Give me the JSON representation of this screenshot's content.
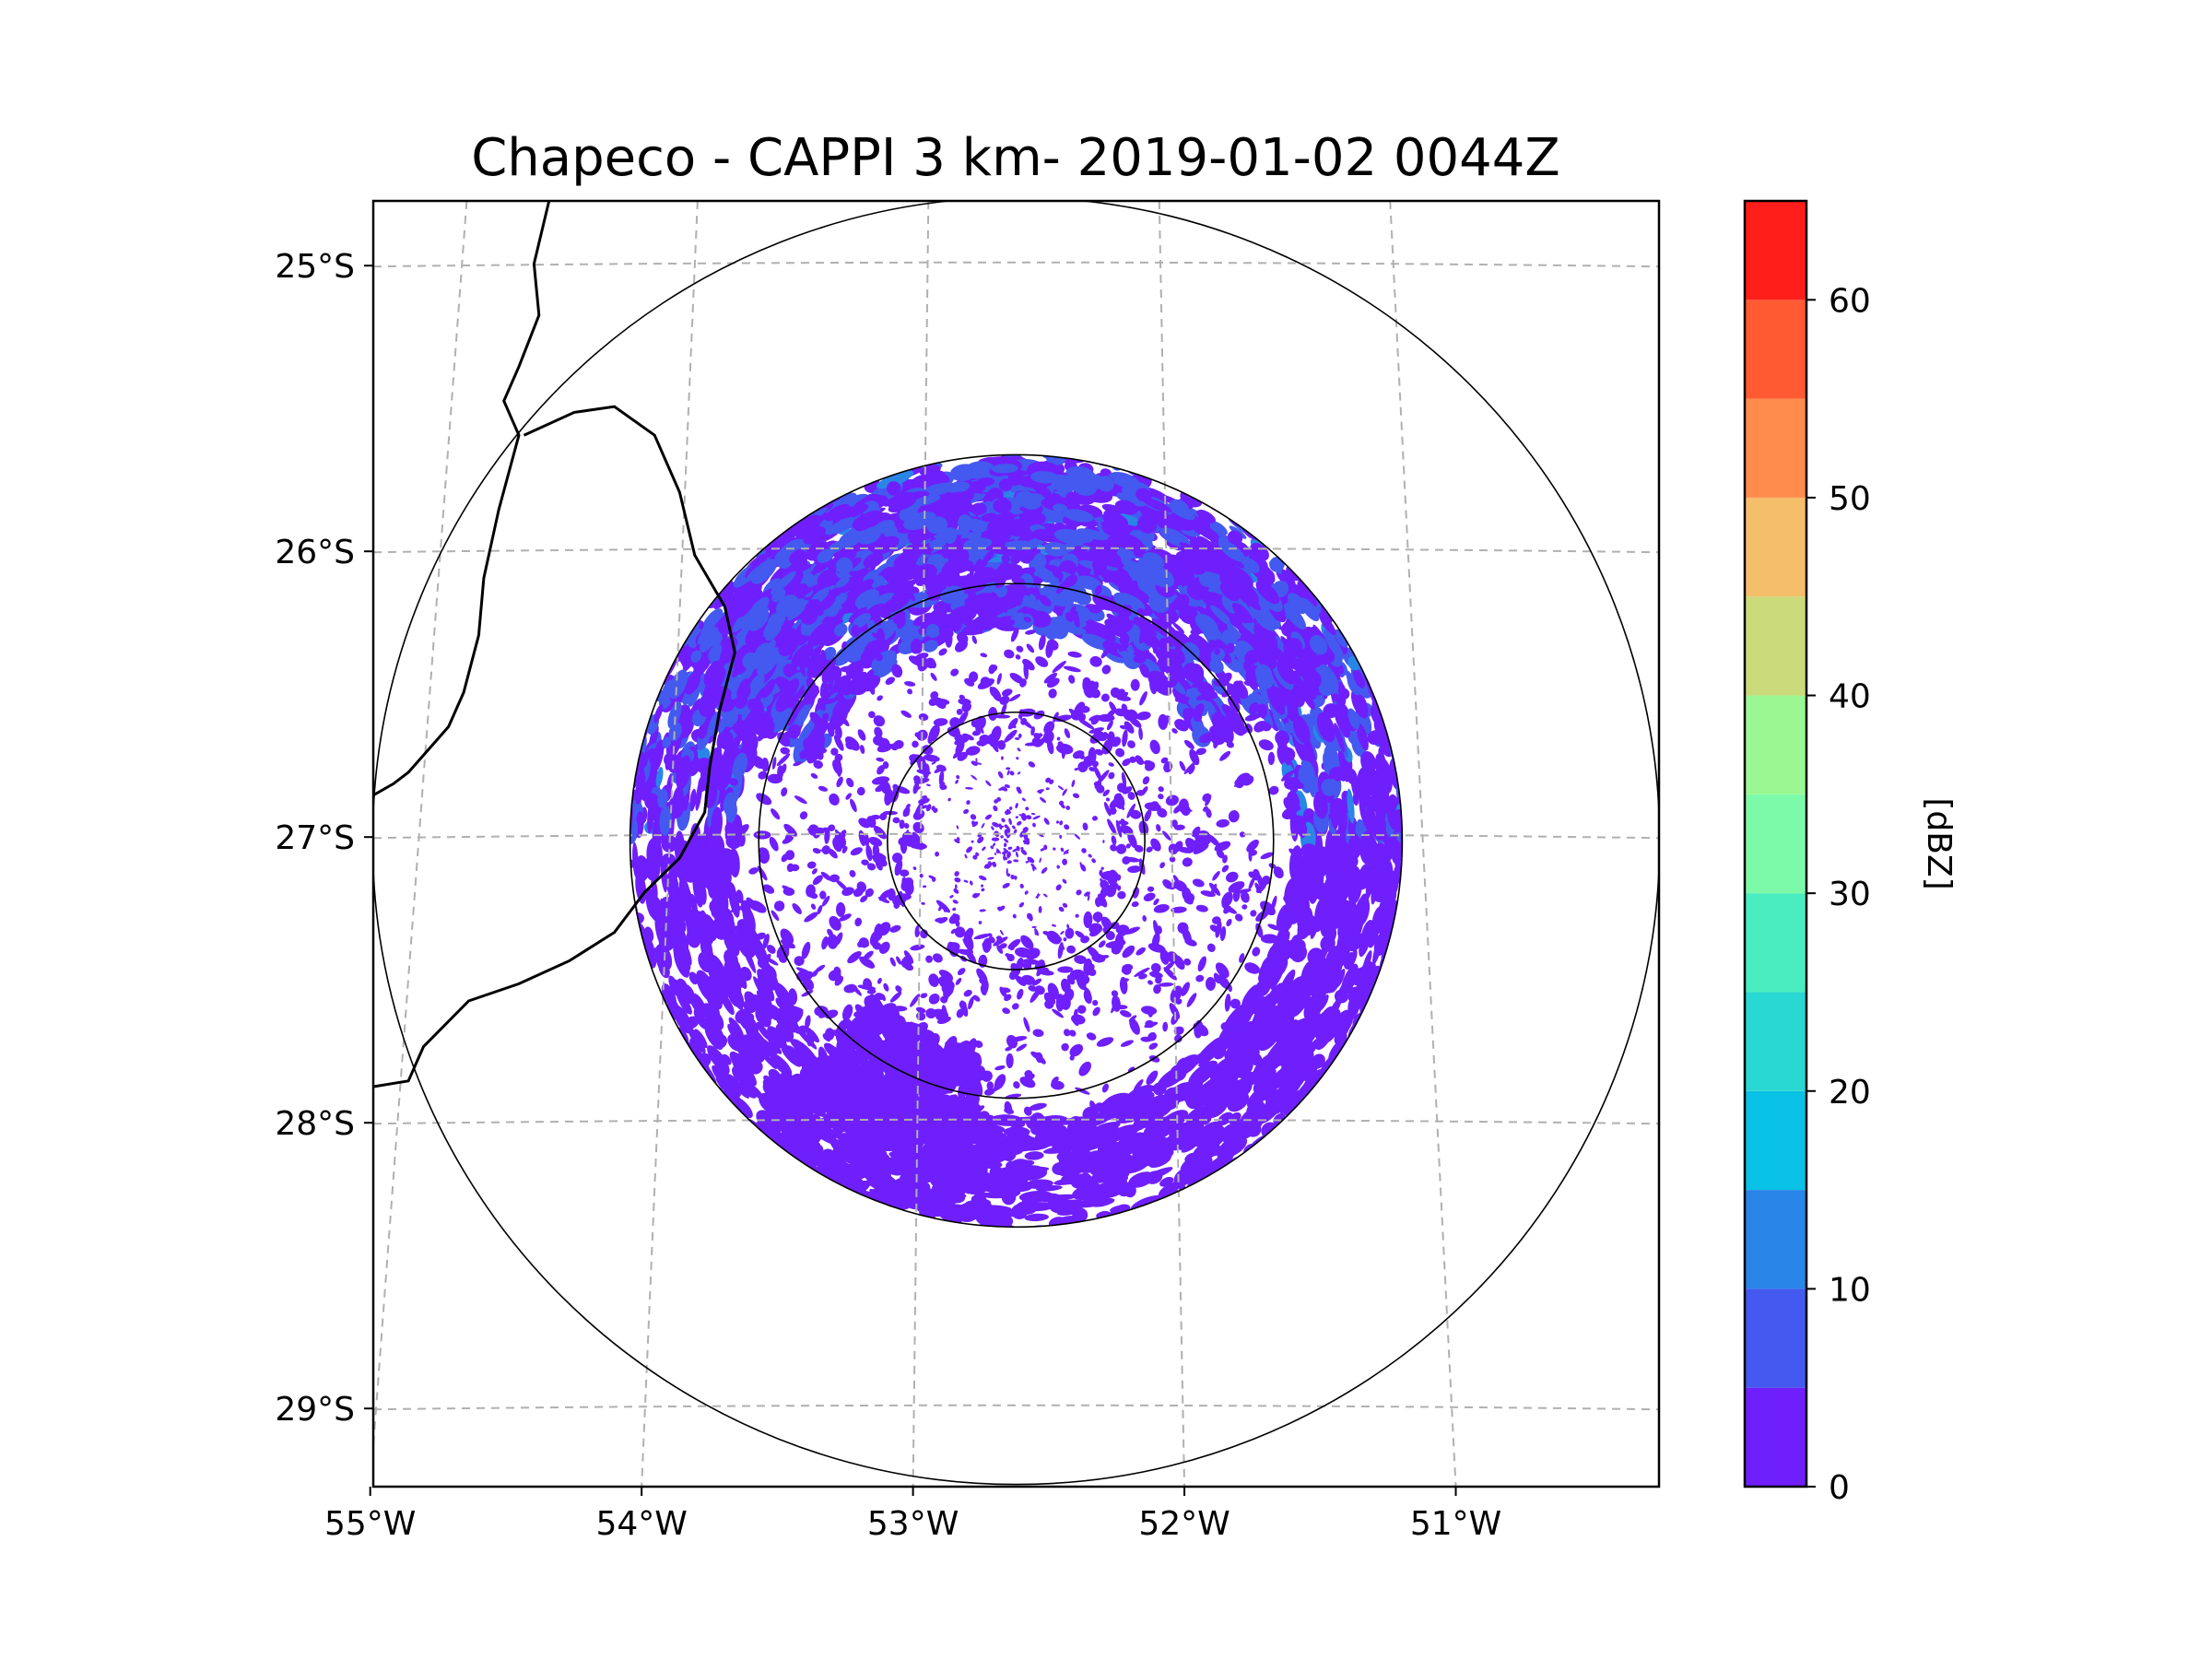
{
  "title": "Chapeco - CAPPI 3 km- 2019-01-02 0044Z",
  "map": {
    "lon_range": [
      -55.18,
      -50.06
    ],
    "lat_range": [
      -29.28,
      -24.78
    ],
    "radar_center": {
      "lon": -52.62,
      "lat": -27.02
    },
    "range_rings_km": [
      50,
      100,
      150,
      250
    ],
    "graticule_style": "dashed gray",
    "lat_ticks": [
      {
        "value": -25,
        "label": "25°S"
      },
      {
        "value": -26,
        "label": "26°S"
      },
      {
        "value": -27,
        "label": "27°S"
      },
      {
        "value": -28,
        "label": "28°S"
      },
      {
        "value": -29,
        "label": "29°S"
      }
    ],
    "lon_ticks": [
      {
        "value": -55,
        "label": "55°W"
      },
      {
        "value": -54,
        "label": "54°W"
      },
      {
        "value": -53,
        "label": "53°W"
      },
      {
        "value": -52,
        "label": "52°W"
      },
      {
        "value": -51,
        "label": "51°W"
      }
    ],
    "borders": "national and state boundaries (black) on west side"
  },
  "chart_data": {
    "type": "heatmap",
    "title": "Chapeco - CAPPI 3 km- 2019-01-02 0044Z",
    "field": "reflectivity",
    "units": "[dBZ]",
    "dominant_values_dbz": "0-10, scattered echoes, strongest ~10-15 dBZ in north and east",
    "colorbar": {
      "label": "[dBZ]",
      "range": [
        0,
        65
      ],
      "ticks": [
        0,
        10,
        20,
        30,
        40,
        50,
        60
      ],
      "bins": [
        {
          "from": 0,
          "to": 5,
          "color": "#6f1ffb"
        },
        {
          "from": 5,
          "to": 10,
          "color": "#4459ef"
        },
        {
          "from": 10,
          "to": 15,
          "color": "#2a85e8"
        },
        {
          "from": 15,
          "to": 20,
          "color": "#0ac1e6"
        },
        {
          "from": 20,
          "to": 25,
          "color": "#29d8d2"
        },
        {
          "from": 25,
          "to": 30,
          "color": "#4aedc0"
        },
        {
          "from": 30,
          "to": 35,
          "color": "#7dfaa9"
        },
        {
          "from": 35,
          "to": 40,
          "color": "#9af791"
        },
        {
          "from": 40,
          "to": 45,
          "color": "#cbda7a"
        },
        {
          "from": 45,
          "to": 50,
          "color": "#f4be6a"
        },
        {
          "from": 50,
          "to": 55,
          "color": "#ff8c4d"
        },
        {
          "from": 55,
          "to": 60,
          "color": "#ff5a32"
        },
        {
          "from": 60,
          "to": 65,
          "color": "#ff1e1a"
        }
      ]
    }
  }
}
